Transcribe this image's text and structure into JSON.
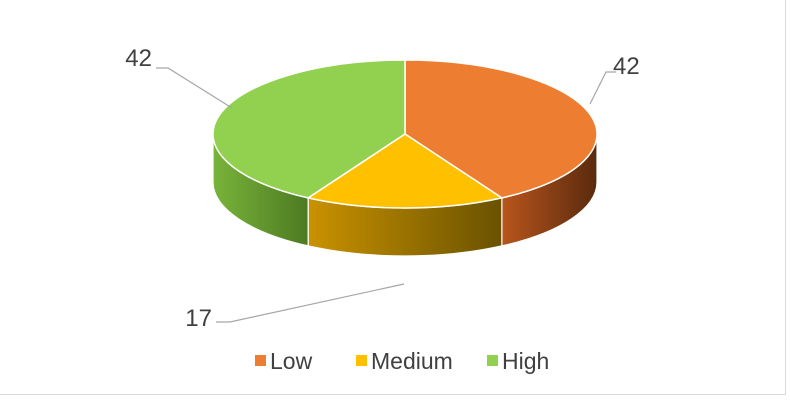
{
  "chart_data": {
    "type": "pie",
    "style": "3d",
    "title": "",
    "categories": [
      "Low",
      "Medium",
      "High"
    ],
    "values": [
      42,
      17,
      42
    ],
    "data_labels": [
      "42",
      "17",
      "42"
    ],
    "colors": [
      "#ed7d31",
      "#ffc000",
      "#92d050"
    ],
    "legend": {
      "position": "bottom",
      "entries": [
        "Low",
        "Medium",
        "High"
      ]
    }
  }
}
